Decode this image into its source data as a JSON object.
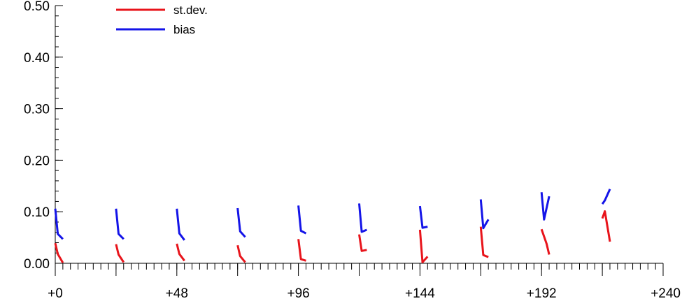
{
  "chart_data": {
    "type": "line",
    "title": "",
    "xlabel": "",
    "ylabel": "",
    "xlim": [
      0,
      240
    ],
    "ylim": [
      0,
      0.5
    ],
    "x_ticks": [
      {
        "value": 0,
        "label": "+0"
      },
      {
        "value": 24,
        "label": ""
      },
      {
        "value": 48,
        "label": "+48"
      },
      {
        "value": 72,
        "label": ""
      },
      {
        "value": 96,
        "label": "+96"
      },
      {
        "value": 120,
        "label": ""
      },
      {
        "value": 144,
        "label": "+144"
      },
      {
        "value": 168,
        "label": ""
      },
      {
        "value": 192,
        "label": "+192"
      },
      {
        "value": 216,
        "label": ""
      },
      {
        "value": 240,
        "label": "+240"
      }
    ],
    "x_minor_step": 3,
    "y_ticks": [
      {
        "value": 0.0,
        "label": "0.00"
      },
      {
        "value": 0.1,
        "label": "0.10"
      },
      {
        "value": 0.2,
        "label": "0.20"
      },
      {
        "value": 0.3,
        "label": "0.30"
      },
      {
        "value": 0.4,
        "label": "0.40"
      },
      {
        "value": 0.5,
        "label": "0.50"
      }
    ],
    "y_minor_step": 0.02,
    "grid": false,
    "legend_position": "top-left",
    "series": [
      {
        "name": "st.dev.",
        "color": "#e8141b",
        "segments": [
          [
            [
              0,
              0.039
            ],
            [
              1,
              0.018
            ],
            [
              3,
              0.001
            ]
          ],
          [
            [
              24,
              0.037
            ],
            [
              25,
              0.017
            ],
            [
              27,
              0.002
            ]
          ],
          [
            [
              48,
              0.038
            ],
            [
              49,
              0.018
            ],
            [
              51,
              0.005
            ]
          ],
          [
            [
              72,
              0.035
            ],
            [
              73,
              0.014
            ],
            [
              75,
              0.002
            ]
          ],
          [
            [
              96,
              0.047
            ],
            [
              97,
              0.008
            ],
            [
              99,
              0.005
            ]
          ],
          [
            [
              120,
              0.056
            ],
            [
              121,
              0.024
            ],
            [
              123,
              0.026
            ]
          ],
          [
            [
              144,
              0.065
            ],
            [
              145,
              0.002
            ],
            [
              147,
              0.013
            ]
          ],
          [
            [
              168,
              0.071
            ],
            [
              169,
              0.016
            ],
            [
              171,
              0.012
            ]
          ],
          [
            [
              192,
              0.066
            ],
            [
              194,
              0.038
            ],
            [
              195,
              0.017
            ]
          ],
          [
            [
              216,
              0.087
            ],
            [
              217,
              0.101
            ],
            [
              219,
              0.042
            ]
          ]
        ]
      },
      {
        "name": "bias",
        "color": "#1414e8",
        "segments": [
          [
            [
              0,
              0.106
            ],
            [
              1,
              0.057
            ],
            [
              3,
              0.047
            ]
          ],
          [
            [
              24,
              0.106
            ],
            [
              25,
              0.057
            ],
            [
              27,
              0.047
            ]
          ],
          [
            [
              48,
              0.106
            ],
            [
              49,
              0.058
            ],
            [
              51,
              0.045
            ]
          ],
          [
            [
              72,
              0.107
            ],
            [
              73,
              0.062
            ],
            [
              75,
              0.051
            ]
          ],
          [
            [
              96,
              0.112
            ],
            [
              97,
              0.063
            ],
            [
              99,
              0.058
            ]
          ],
          [
            [
              120,
              0.116
            ],
            [
              121,
              0.061
            ],
            [
              123,
              0.065
            ]
          ],
          [
            [
              144,
              0.111
            ],
            [
              145,
              0.069
            ],
            [
              147,
              0.071
            ]
          ],
          [
            [
              168,
              0.124
            ],
            [
              169,
              0.068
            ],
            [
              171,
              0.085
            ]
          ],
          [
            [
              192,
              0.138
            ],
            [
              193,
              0.085
            ],
            [
              195,
              0.13
            ]
          ],
          [
            [
              216,
              0.115
            ],
            [
              217,
              0.122
            ],
            [
              219,
              0.144
            ]
          ]
        ]
      }
    ]
  }
}
